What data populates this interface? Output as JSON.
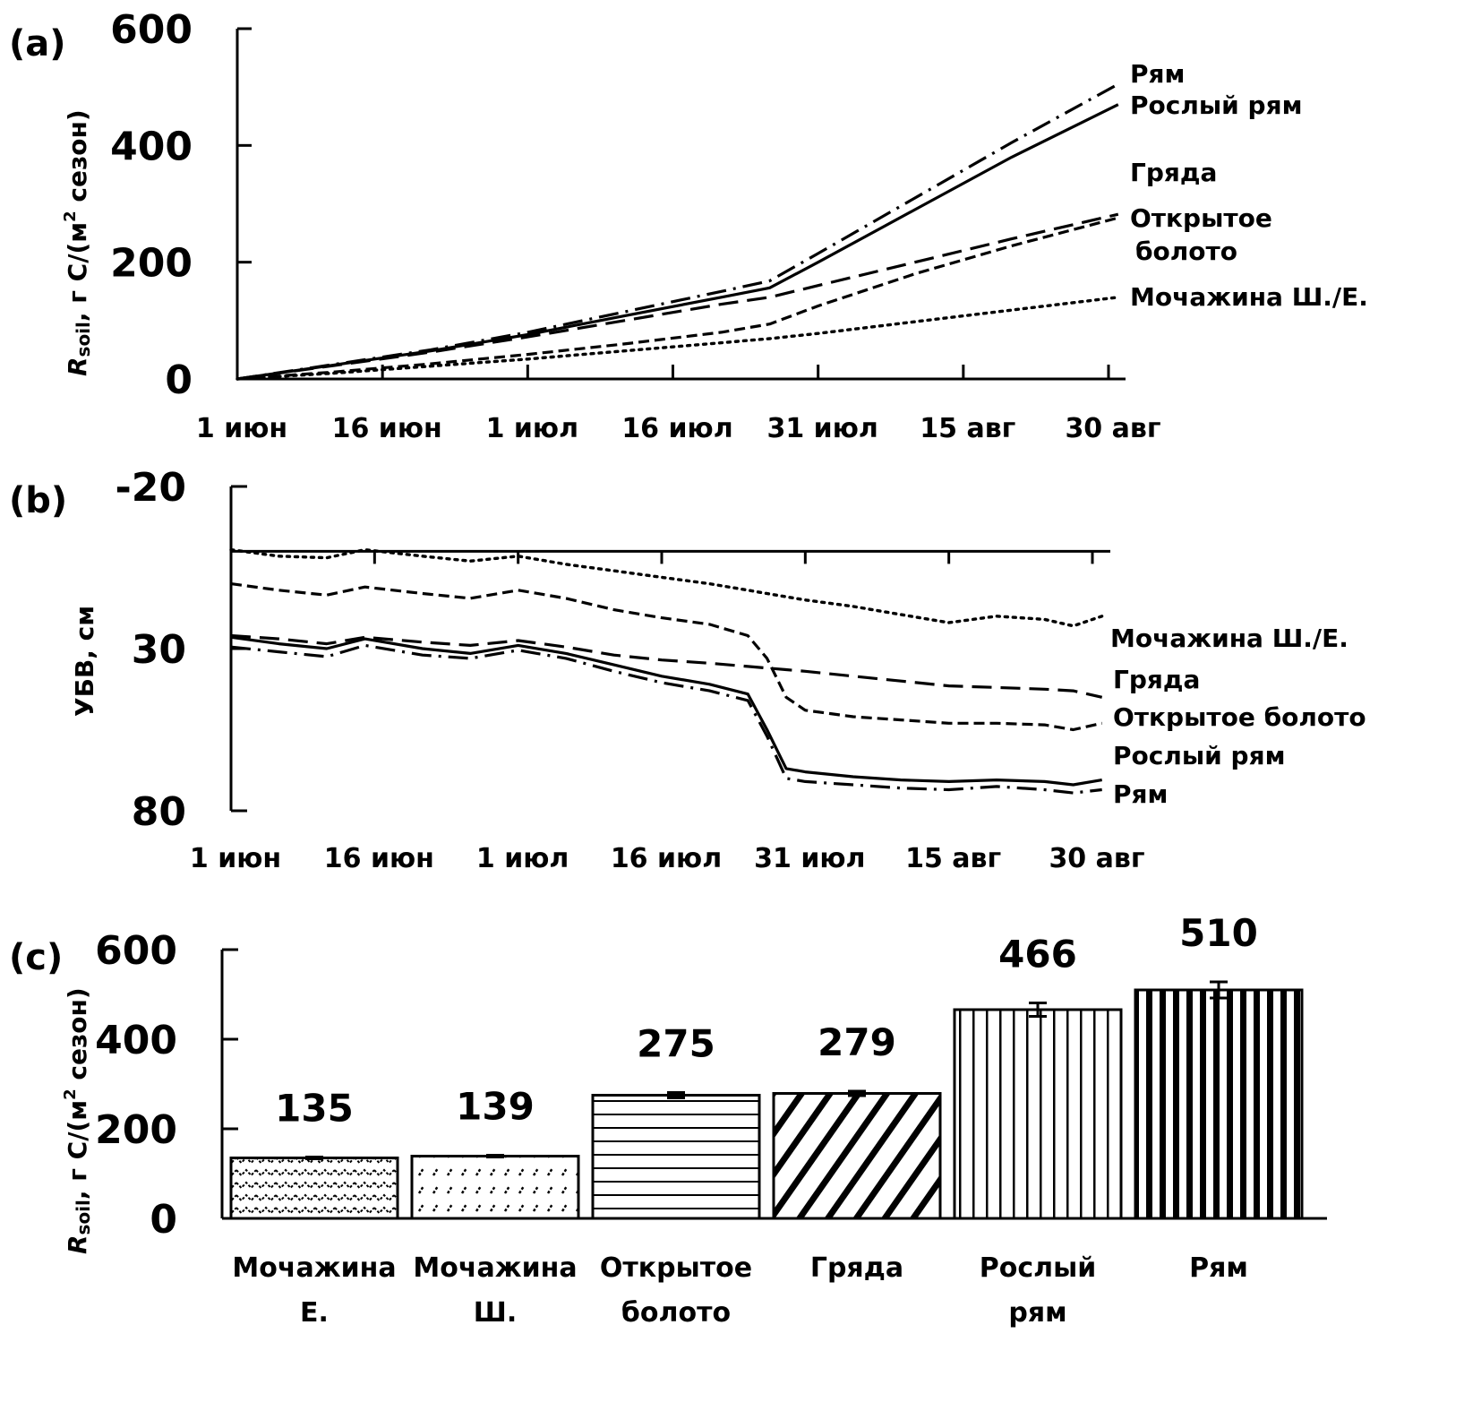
{
  "chart_data": [
    {
      "panel": "(a)",
      "type": "line",
      "title": "",
      "xlabel": "",
      "ylabel": {
        "symbol": "R",
        "subscript": "soil",
        "rest": ", г C/(м",
        "sup": "2",
        "tail": " сезон)"
      },
      "ylim": [
        0,
        600
      ],
      "yticks": [
        "0",
        "200",
        "400",
        "600"
      ],
      "ytick_values": [
        0,
        200,
        400,
        600
      ],
      "xlim_days": [
        0,
        91
      ],
      "xticks": [
        "1 июн",
        "16 июн",
        "1 июл",
        "16 июл",
        "31 июл",
        "15 авг",
        "30 авг"
      ],
      "xtick_days": [
        0,
        15,
        30,
        45,
        60,
        75,
        90
      ],
      "x_days": [
        0,
        10,
        20,
        30,
        40,
        50,
        55,
        60,
        70,
        80,
        91
      ],
      "series": [
        {
          "name": "Рям",
          "style": "dashdot",
          "values": [
            0,
            25,
            50,
            80,
            115,
            150,
            168,
            215,
            310,
            405,
            505
          ]
        },
        {
          "name": "Рослый рям",
          "style": "solid",
          "values": [
            0,
            24,
            48,
            76,
            108,
            140,
            156,
            200,
            290,
            380,
            470
          ]
        },
        {
          "name": "Гряда",
          "style": "longdash",
          "values": [
            0,
            23,
            46,
            72,
            100,
            128,
            140,
            160,
            200,
            240,
            282
          ]
        },
        {
          "name": "Открытое болото",
          "style": "shortdash",
          "values": [
            0,
            12,
            26,
            42,
            60,
            80,
            94,
            125,
            180,
            228,
            276
          ]
        },
        {
          "name": "Мочажина Ш./Е.",
          "style": "dotted",
          "values": [
            0,
            10,
            22,
            34,
            48,
            62,
            69,
            78,
            98,
            118,
            140
          ]
        }
      ],
      "series_labels": [
        {
          "text": "Рям"
        },
        {
          "text": "Рослый рям"
        },
        {
          "text": "Гряда"
        },
        {
          "text": "Открытое"
        },
        {
          "text": "болото"
        },
        {
          "text": "Мочажина Ш./Е."
        }
      ]
    },
    {
      "panel": "(b)",
      "type": "line",
      "title": "",
      "xlabel": "",
      "ylabel": "УБВ, см",
      "ylim": [
        -20,
        80
      ],
      "y_inverted": true,
      "yticks": [
        "-20",
        "30",
        "80"
      ],
      "ytick_values": [
        -20,
        30,
        80
      ],
      "xlim_days": [
        0,
        91
      ],
      "xticks": [
        "1 июн",
        "16 июн",
        "1 июл",
        "16 июл",
        "31 июл",
        "15 авг",
        "30 авг"
      ],
      "xtick_days": [
        0,
        15,
        30,
        45,
        60,
        75,
        90
      ],
      "zero_line": 0,
      "x_days": [
        0,
        5,
        10,
        14,
        20,
        25,
        30,
        35,
        40,
        45,
        50,
        54,
        56,
        58,
        60,
        65,
        70,
        75,
        80,
        85,
        88,
        91
      ],
      "series": [
        {
          "name": "Мочажина Ш./Е.",
          "style": "dotted",
          "values": [
            -0.5,
            1.5,
            2,
            -0.5,
            1.5,
            3,
            1.5,
            4,
            6,
            8,
            10,
            12,
            13,
            14,
            15,
            17,
            19.5,
            22,
            20,
            21,
            23,
            20
          ]
        },
        {
          "name": "Гряда",
          "style": "longdash",
          "values": [
            26,
            27,
            28.5,
            26.5,
            28,
            29,
            27.5,
            29.5,
            32,
            33.5,
            34.5,
            35.5,
            36,
            36.5,
            37,
            38.5,
            40,
            41.5,
            42,
            42.5,
            43,
            45
          ]
        },
        {
          "name": "Открытое болото",
          "style": "shortdash",
          "values": [
            10,
            12,
            13.5,
            11,
            13,
            14.5,
            12,
            14.5,
            18,
            20.5,
            22.5,
            26,
            33,
            45,
            49,
            51,
            52,
            53,
            53,
            53.5,
            55,
            53
          ]
        },
        {
          "name": "Рослый рям",
          "style": "solid",
          "values": [
            26.5,
            28.5,
            30,
            27,
            30,
            31.5,
            29,
            31.5,
            35,
            38.5,
            41,
            44,
            55,
            67,
            68,
            69.5,
            70.5,
            71,
            70.5,
            71,
            72,
            70.5
          ]
        },
        {
          "name": "Рям",
          "style": "dashdot",
          "values": [
            29.5,
            31,
            32.5,
            29,
            32,
            33,
            30.5,
            33,
            37,
            40.5,
            43,
            46,
            57,
            70,
            71,
            72,
            73,
            73.5,
            72.5,
            73.5,
            74.5,
            73.5
          ]
        }
      ],
      "series_labels": [
        {
          "text": "Мочажина Ш./Е."
        },
        {
          "text": "Гряда"
        },
        {
          "text": "Открытое болото"
        },
        {
          "text": "Рослый рям"
        },
        {
          "text": "Рям"
        }
      ]
    },
    {
      "panel": "(c)",
      "type": "bar",
      "title": "",
      "xlabel": "",
      "ylabel": {
        "symbol": "R",
        "subscript": "soil",
        "rest": ", г C/(м",
        "sup": "2",
        "tail": " сезон)"
      },
      "ylim": [
        0,
        600
      ],
      "yticks": [
        "0",
        "200",
        "400",
        "600"
      ],
      "ytick_values": [
        0,
        200,
        400,
        600
      ],
      "categories": [
        {
          "line1": "Мочажина",
          "line2": "Е."
        },
        {
          "line1": "Мочажина",
          "line2": "Ш."
        },
        {
          "line1": "Открытое",
          "line2": "болото"
        },
        {
          "line1": "Гряда",
          "line2": ""
        },
        {
          "line1": "Рослый",
          "line2": "рям"
        },
        {
          "line1": "Рям",
          "line2": ""
        }
      ],
      "values": [
        135,
        139,
        275,
        279,
        466,
        510
      ],
      "value_labels": [
        "135",
        "139",
        "275",
        "279",
        "466",
        "510"
      ],
      "errors": [
        2,
        2,
        6,
        5,
        15,
        18
      ],
      "patterns": [
        "wave",
        "dotted-diagonal",
        "horizontal",
        "diagonal",
        "vertical-thin",
        "vertical-thick"
      ]
    }
  ],
  "colors": {
    "ink": "#000000",
    "background": "#ffffff"
  }
}
